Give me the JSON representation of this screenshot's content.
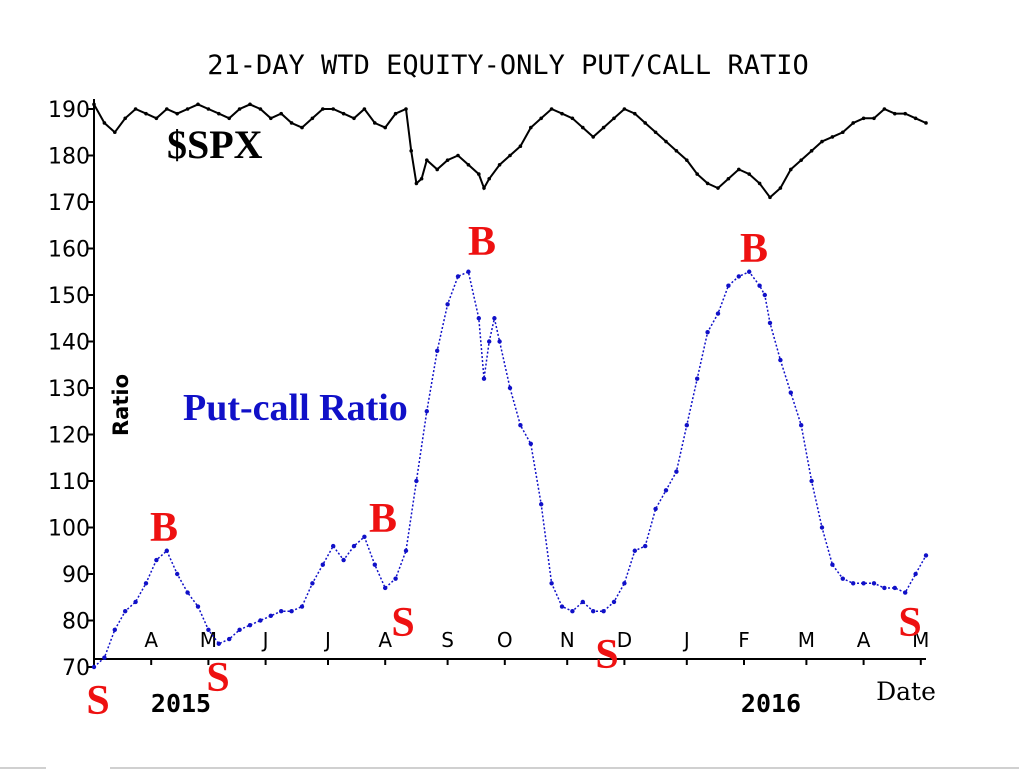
{
  "chart_data": {
    "type": "line",
    "title": "21-DAY WTD EQUITY-ONLY PUT/CALL RATIO",
    "xlabel": "Date",
    "ylabel": "Ratio",
    "ylim": [
      70,
      190
    ],
    "yticks": [
      70,
      80,
      90,
      100,
      110,
      120,
      130,
      140,
      150,
      160,
      170,
      180,
      190
    ],
    "month_labels": [
      "A",
      "M",
      "J",
      "J",
      "A",
      "S",
      "O",
      "N",
      "D",
      "J",
      "F",
      "M",
      "A",
      "M"
    ],
    "year_labels": [
      "2015",
      "2016"
    ],
    "grid": false,
    "annotations": {
      "spx_label": "$SPX",
      "pcr_label": "Put-call Ratio",
      "buy_label": "B",
      "sell_label": "S"
    },
    "series": [
      {
        "name": "$SPX",
        "color": "#000000",
        "values": [
          [
            0,
            191
          ],
          [
            2,
            187
          ],
          [
            4,
            185
          ],
          [
            6,
            188
          ],
          [
            8,
            190
          ],
          [
            10,
            189
          ],
          [
            12,
            188
          ],
          [
            14,
            190
          ],
          [
            16,
            189
          ],
          [
            18,
            190
          ],
          [
            20,
            191
          ],
          [
            22,
            190
          ],
          [
            24,
            189
          ],
          [
            26,
            188
          ],
          [
            28,
            190
          ],
          [
            30,
            191
          ],
          [
            32,
            190
          ],
          [
            34,
            188
          ],
          [
            36,
            189
          ],
          [
            38,
            187
          ],
          [
            40,
            186
          ],
          [
            42,
            188
          ],
          [
            44,
            190
          ],
          [
            46,
            190
          ],
          [
            48,
            189
          ],
          [
            50,
            188
          ],
          [
            52,
            190
          ],
          [
            54,
            187
          ],
          [
            56,
            186
          ],
          [
            58,
            189
          ],
          [
            60,
            190
          ],
          [
            61,
            181
          ],
          [
            62,
            174
          ],
          [
            63,
            175
          ],
          [
            64,
            179
          ],
          [
            66,
            177
          ],
          [
            68,
            179
          ],
          [
            70,
            180
          ],
          [
            72,
            178
          ],
          [
            74,
            176
          ],
          [
            75,
            173
          ],
          [
            76,
            175
          ],
          [
            78,
            178
          ],
          [
            80,
            180
          ],
          [
            82,
            182
          ],
          [
            84,
            186
          ],
          [
            86,
            188
          ],
          [
            88,
            190
          ],
          [
            90,
            189
          ],
          [
            92,
            188
          ],
          [
            94,
            186
          ],
          [
            96,
            184
          ],
          [
            98,
            186
          ],
          [
            100,
            188
          ],
          [
            102,
            190
          ],
          [
            104,
            189
          ],
          [
            106,
            187
          ],
          [
            108,
            185
          ],
          [
            110,
            183
          ],
          [
            112,
            181
          ],
          [
            114,
            179
          ],
          [
            116,
            176
          ],
          [
            118,
            174
          ],
          [
            120,
            173
          ],
          [
            122,
            175
          ],
          [
            124,
            177
          ],
          [
            126,
            176
          ],
          [
            128,
            174
          ],
          [
            130,
            171
          ],
          [
            132,
            173
          ],
          [
            134,
            177
          ],
          [
            136,
            179
          ],
          [
            138,
            181
          ],
          [
            140,
            183
          ],
          [
            142,
            184
          ],
          [
            144,
            185
          ],
          [
            146,
            187
          ],
          [
            148,
            188
          ],
          [
            150,
            188
          ],
          [
            152,
            190
          ],
          [
            154,
            189
          ],
          [
            156,
            189
          ],
          [
            158,
            188
          ],
          [
            160,
            187
          ]
        ]
      },
      {
        "name": "Put-call Ratio",
        "color": "#1010c8",
        "values": [
          [
            0,
            70
          ],
          [
            2,
            72
          ],
          [
            4,
            78
          ],
          [
            6,
            82
          ],
          [
            8,
            84
          ],
          [
            10,
            88
          ],
          [
            12,
            93
          ],
          [
            14,
            95
          ],
          [
            16,
            90
          ],
          [
            18,
            86
          ],
          [
            20,
            83
          ],
          [
            22,
            78
          ],
          [
            24,
            75
          ],
          [
            26,
            76
          ],
          [
            28,
            78
          ],
          [
            30,
            79
          ],
          [
            32,
            80
          ],
          [
            34,
            81
          ],
          [
            36,
            82
          ],
          [
            38,
            82
          ],
          [
            40,
            83
          ],
          [
            42,
            88
          ],
          [
            44,
            92
          ],
          [
            46,
            96
          ],
          [
            48,
            93
          ],
          [
            50,
            96
          ],
          [
            52,
            98
          ],
          [
            54,
            92
          ],
          [
            56,
            87
          ],
          [
            58,
            89
          ],
          [
            60,
            95
          ],
          [
            62,
            110
          ],
          [
            64,
            125
          ],
          [
            66,
            138
          ],
          [
            68,
            148
          ],
          [
            70,
            154
          ],
          [
            72,
            155
          ],
          [
            74,
            145
          ],
          [
            75,
            132
          ],
          [
            76,
            140
          ],
          [
            77,
            145
          ],
          [
            78,
            140
          ],
          [
            80,
            130
          ],
          [
            82,
            122
          ],
          [
            84,
            118
          ],
          [
            86,
            105
          ],
          [
            88,
            88
          ],
          [
            90,
            83
          ],
          [
            92,
            82
          ],
          [
            94,
            84
          ],
          [
            96,
            82
          ],
          [
            98,
            82
          ],
          [
            100,
            84
          ],
          [
            102,
            88
          ],
          [
            104,
            95
          ],
          [
            106,
            96
          ],
          [
            108,
            104
          ],
          [
            110,
            108
          ],
          [
            112,
            112
          ],
          [
            114,
            122
          ],
          [
            116,
            132
          ],
          [
            118,
            142
          ],
          [
            120,
            146
          ],
          [
            122,
            152
          ],
          [
            124,
            154
          ],
          [
            126,
            155
          ],
          [
            128,
            152
          ],
          [
            129,
            150
          ],
          [
            130,
            144
          ],
          [
            132,
            136
          ],
          [
            134,
            129
          ],
          [
            136,
            122
          ],
          [
            138,
            110
          ],
          [
            140,
            100
          ],
          [
            142,
            92
          ],
          [
            144,
            89
          ],
          [
            146,
            88
          ],
          [
            148,
            88
          ],
          [
            150,
            88
          ],
          [
            152,
            87
          ],
          [
            154,
            87
          ],
          [
            156,
            86
          ],
          [
            158,
            90
          ],
          [
            160,
            94
          ]
        ]
      }
    ]
  }
}
